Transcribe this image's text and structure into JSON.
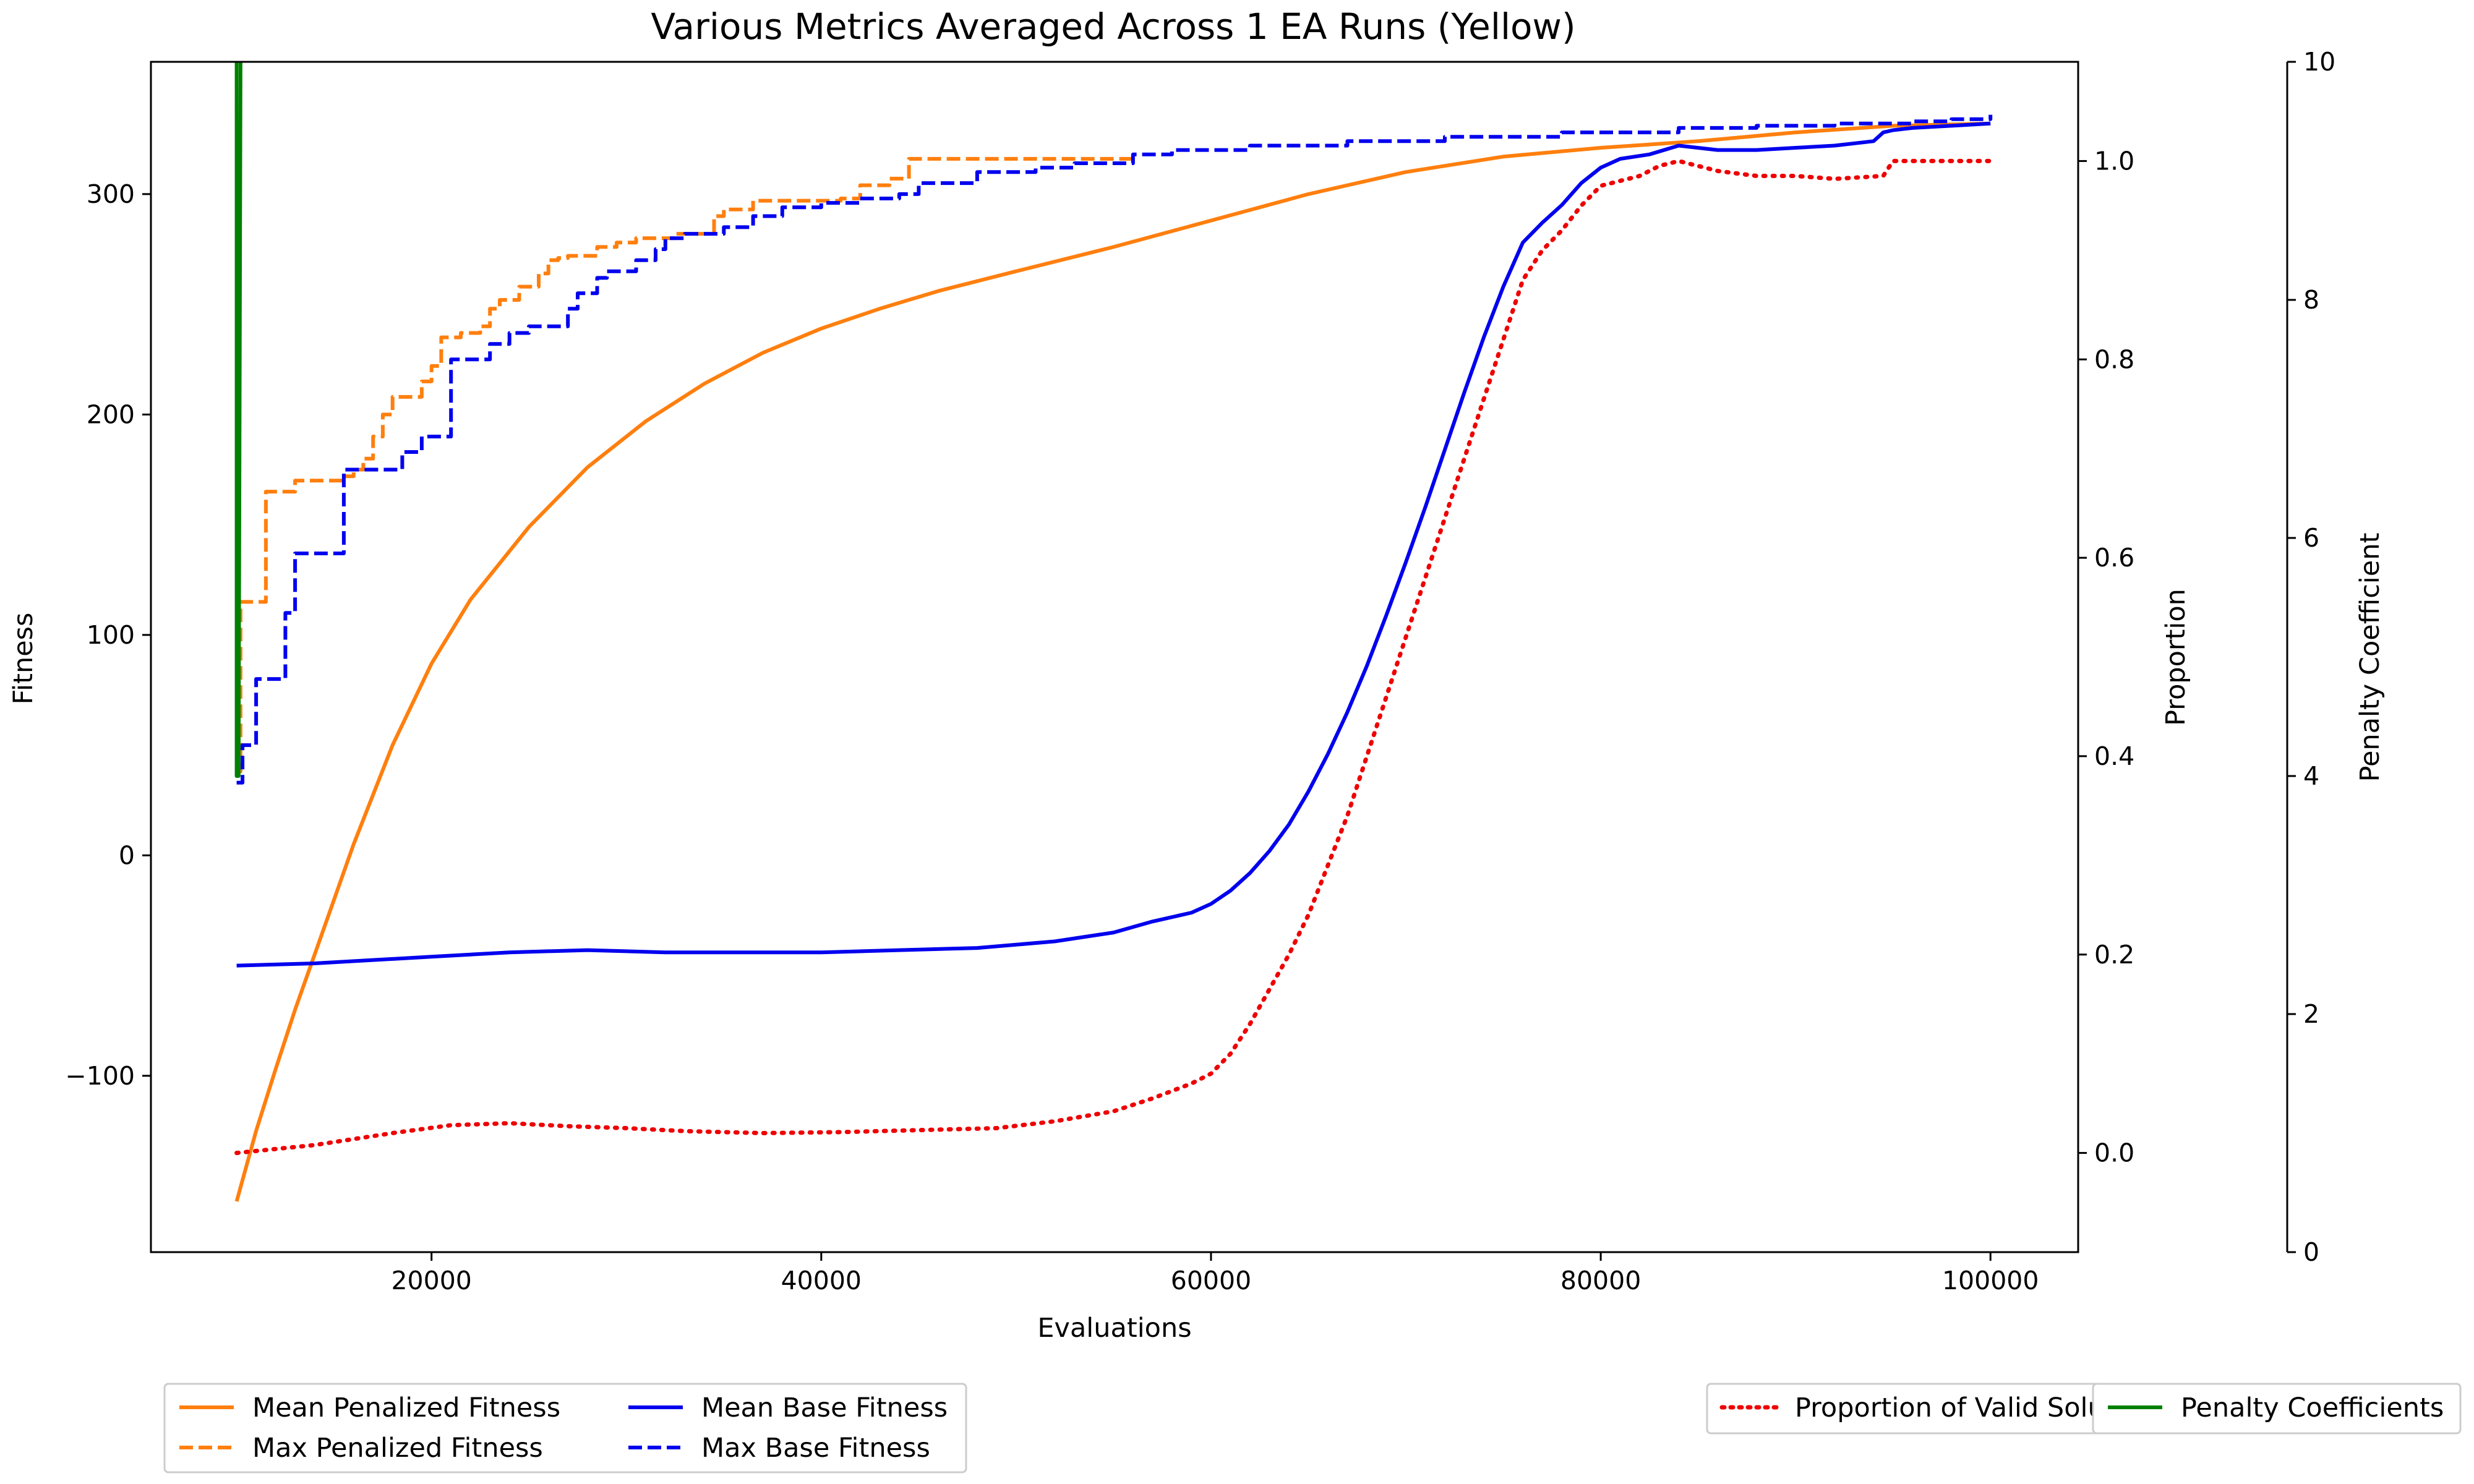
{
  "chart_data": {
    "type": "line",
    "title": "Various Metrics Averaged Across 1 EA Runs (Yellow)",
    "xlabel": "Evaluations",
    "ylabel_left": "Fitness",
    "ylabel_right": "Proportion",
    "ylabel_right2": "Penalty Coefficient",
    "xlim": [
      5600,
      104500
    ],
    "ylim_left": [
      -180,
      360
    ],
    "ylim_right": [
      -0.1,
      1.1
    ],
    "ylim_right2": [
      0,
      10
    ],
    "xticks": [
      20000,
      40000,
      60000,
      80000,
      100000
    ],
    "xtick_labels": [
      "20000",
      "40000",
      "60000",
      "80000",
      "100000"
    ],
    "yticks_left": [
      -100,
      0,
      100,
      200,
      300
    ],
    "ytick_labels_left": [
      "−100",
      "0",
      "100",
      "200",
      "300"
    ],
    "yticks_right": [
      0.0,
      0.2,
      0.4,
      0.6,
      0.8,
      1.0
    ],
    "ytick_labels_right": [
      "0.0",
      "0.2",
      "0.4",
      "0.6",
      "0.8",
      "1.0"
    ],
    "yticks_right2": [
      0,
      2,
      4,
      6,
      8,
      10
    ],
    "ytick_labels_right2": [
      "0",
      "2",
      "4",
      "6",
      "8",
      "10"
    ],
    "series": [
      {
        "name": "Mean Penalized Fitness",
        "axis": "left",
        "color": "#ff7f0e",
        "style": "solid",
        "x": [
          10000,
          11000,
          12000,
          13000,
          14000,
          16000,
          18000,
          20000,
          22000,
          25000,
          28000,
          31000,
          34000,
          37000,
          40000,
          43000,
          46000,
          50000,
          55000,
          60000,
          65000,
          70000,
          75000,
          80000,
          85000,
          90000,
          95000,
          100000
        ],
        "values": [
          -157,
          -125,
          -97,
          -70,
          -45,
          5,
          50,
          87,
          116,
          149,
          176,
          197,
          214,
          228,
          239,
          248,
          256,
          265,
          276,
          288,
          300,
          310,
          317,
          321,
          324,
          328,
          331,
          332
        ]
      },
      {
        "name": "Max Penalized Fitness",
        "axis": "left",
        "color": "#ff7f0e",
        "style": "dashed",
        "x": [
          10000,
          10200,
          11500,
          13000,
          15500,
          16000,
          16500,
          17000,
          17500,
          18000,
          19500,
          20000,
          20500,
          21500,
          22500,
          23000,
          23500,
          24500,
          25500,
          26000,
          26500,
          27000,
          28500,
          29500,
          30500,
          32500,
          34500,
          35000,
          36500,
          38000,
          41000,
          42000,
          43500,
          44500,
          48000,
          52000,
          56000
        ],
        "values": [
          38,
          115,
          165,
          170,
          172,
          175,
          180,
          190,
          200,
          208,
          215,
          222,
          235,
          237,
          240,
          248,
          252,
          258,
          264,
          270,
          271,
          272,
          276,
          278,
          280,
          282,
          290,
          293,
          297,
          297,
          298,
          304,
          307,
          316,
          316,
          316,
          317
        ]
      },
      {
        "name": "Mean Base Fitness",
        "axis": "left",
        "color": "#0000ee",
        "style": "solid",
        "x": [
          10000,
          14000,
          20000,
          24000,
          28000,
          32000,
          36000,
          40000,
          44000,
          48000,
          52000,
          55000,
          57000,
          59000,
          60000,
          61000,
          62000,
          63000,
          64000,
          65000,
          66000,
          67000,
          68000,
          69000,
          70000,
          71000,
          72000,
          73000,
          74000,
          75000,
          76000,
          77000,
          78000,
          79000,
          80000,
          81000,
          82500,
          84000,
          86000,
          88000,
          90000,
          92000,
          94000,
          94500,
          95000,
          96000,
          98000,
          100000
        ],
        "values": [
          -50,
          -49,
          -46,
          -44,
          -43,
          -44,
          -44,
          -44,
          -43,
          -42,
          -39,
          -35,
          -30,
          -26,
          -22,
          -16,
          -8,
          2,
          14,
          29,
          46,
          65,
          86,
          109,
          133,
          158,
          184,
          210,
          235,
          258,
          278,
          287,
          295,
          305,
          312,
          316,
          318,
          322,
          320,
          320,
          321,
          322,
          324,
          328,
          329,
          330,
          331,
          332
        ]
      },
      {
        "name": "Max Base Fitness",
        "axis": "left",
        "color": "#0000ee",
        "style": "dashed",
        "x": [
          10000,
          10300,
          11000,
          12500,
          13000,
          15500,
          18500,
          19500,
          21000,
          23000,
          24000,
          25000,
          27000,
          27500,
          28500,
          29000,
          30500,
          31500,
          32000,
          33000,
          35000,
          36500,
          38000,
          40000,
          42000,
          44000,
          45000,
          48000,
          51000,
          53000,
          56000,
          58000,
          62000,
          67000,
          72000,
          78000,
          84000,
          88000,
          92000,
          96000,
          98000,
          100000
        ],
        "values": [
          33,
          50,
          80,
          110,
          137,
          175,
          183,
          190,
          225,
          232,
          237,
          240,
          248,
          255,
          262,
          265,
          270,
          275,
          280,
          282,
          285,
          290,
          294,
          296,
          298,
          300,
          305,
          310,
          312,
          314,
          318,
          320,
          322,
          324,
          326,
          328,
          330,
          331,
          332,
          333,
          334,
          336
        ]
      },
      {
        "name": "Proportion of Valid Solutions",
        "axis": "right",
        "color": "#ee0000",
        "style": "dotted",
        "x": [
          10000,
          14000,
          18000,
          21000,
          24000,
          27000,
          30000,
          33000,
          37000,
          41000,
          45000,
          49000,
          52000,
          55000,
          57000,
          59000,
          60000,
          61000,
          62000,
          63000,
          64000,
          65000,
          66000,
          67000,
          68000,
          69000,
          70000,
          71000,
          72000,
          73000,
          74000,
          75000,
          76000,
          77000,
          78000,
          79000,
          80000,
          81000,
          82000,
          83000,
          84000,
          85000,
          86000,
          88000,
          90000,
          92000,
          94500,
          95000,
          96000,
          98000,
          100000
        ],
        "values": [
          0.0,
          0.008,
          0.02,
          0.028,
          0.03,
          0.027,
          0.025,
          0.022,
          0.02,
          0.021,
          0.023,
          0.025,
          0.032,
          0.042,
          0.055,
          0.07,
          0.08,
          0.1,
          0.13,
          0.165,
          0.2,
          0.24,
          0.29,
          0.34,
          0.4,
          0.46,
          0.52,
          0.58,
          0.64,
          0.7,
          0.76,
          0.82,
          0.88,
          0.91,
          0.93,
          0.955,
          0.975,
          0.98,
          0.985,
          0.995,
          1.0,
          0.995,
          0.99,
          0.985,
          0.985,
          0.982,
          0.985,
          1.0,
          1.0,
          1.0,
          1.0
        ]
      },
      {
        "name": "Penalty Coefficients",
        "axis": "right2",
        "color": "#008000",
        "style": "solid",
        "x": [
          10000,
          10000,
          10100,
          10200
        ],
        "values": [
          10,
          4.0,
          4.0,
          10
        ]
      }
    ],
    "legend_left": {
      "position": "bottom-left",
      "entries": [
        "Mean Penalized Fitness",
        "Max Penalized Fitness",
        "Mean Base Fitness",
        "Max Base Fitness"
      ]
    },
    "legend_right": {
      "position": "bottom-right",
      "entries": [
        "Proportion of Valid Solutions",
        "Penalty Coefficients"
      ]
    }
  }
}
